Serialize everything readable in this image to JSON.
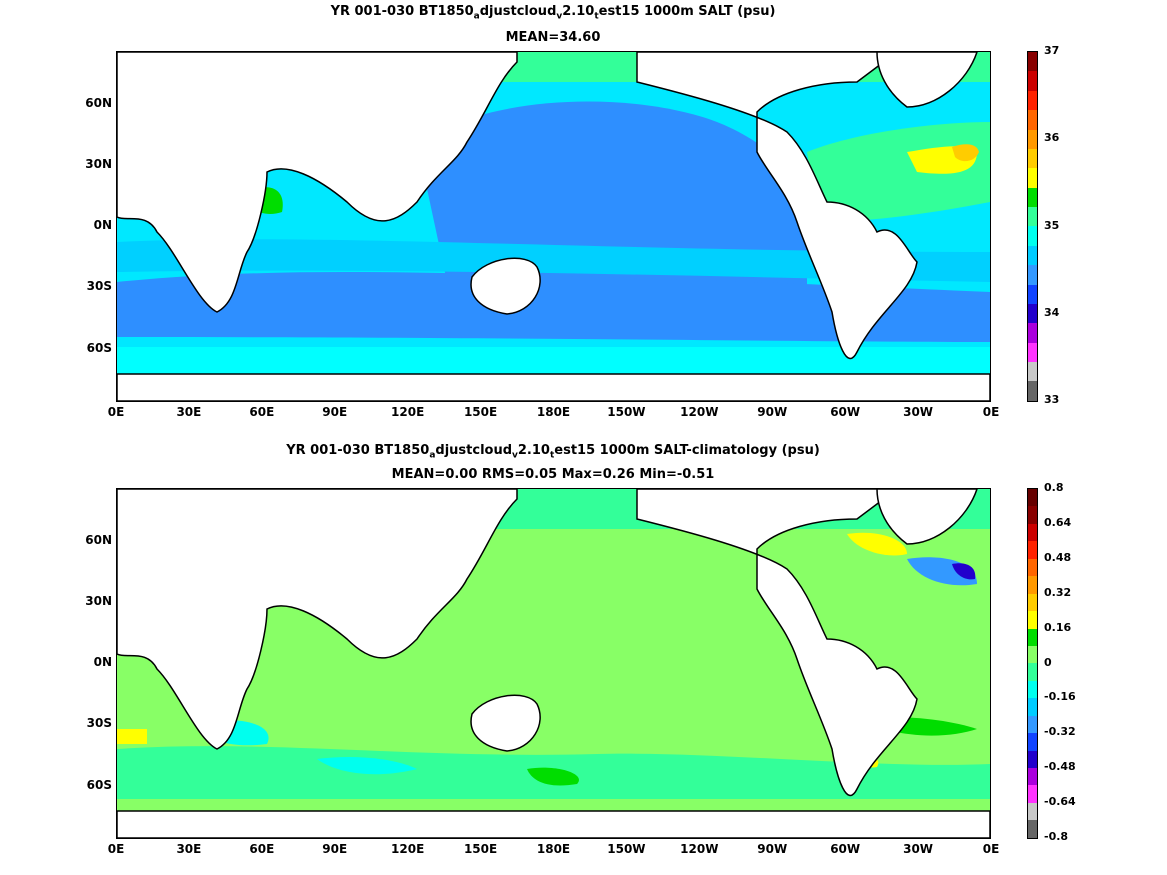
{
  "panels": [
    {
      "title_parts": [
        "YR 001-030 BT1850",
        "a",
        "djustcloud",
        "v",
        "2.10",
        "t",
        "est15 1000m SALT (psu)"
      ],
      "subtitle": "MEAN=34.60",
      "colorbar": {
        "colors": [
          "#666666",
          "#c8c8c8",
          "#ff33ff",
          "#aa00dd",
          "#2200cc",
          "#1144ff",
          "#3399ff",
          "#00ccff",
          "#00ffee",
          "#33ff99",
          "#00dd00",
          "#ffff00",
          "#ffcc00",
          "#ff9900",
          "#ff6600",
          "#ff2200",
          "#cc0000",
          "#880000"
        ],
        "labels": [
          "33",
          "34",
          "35",
          "36",
          "37"
        ]
      }
    },
    {
      "title_parts": [
        "YR 001-030 BT1850",
        "a",
        "djustcloud",
        "v",
        "2.10",
        "t",
        "est15 1000m SALT-climatology (psu)"
      ],
      "subtitle": "MEAN=0.00   RMS=0.05   Max=0.26   Min=-0.51",
      "colorbar": {
        "colors": [
          "#666666",
          "#c8c8c8",
          "#ff33ff",
          "#aa00dd",
          "#2200cc",
          "#1144ff",
          "#3399ff",
          "#00ccff",
          "#00ffee",
          "#33ff99",
          "#88ff66",
          "#00dd00",
          "#ffff00",
          "#ffcc00",
          "#ff9900",
          "#ff6600",
          "#ff2200",
          "#cc0000",
          "#880000",
          "#660000"
        ],
        "labels": [
          "0.8",
          "0.64",
          "0.48",
          "0.32",
          "0.16",
          "0",
          "-0.16",
          "-0.32",
          "-0.48",
          "-0.64",
          "-0.8"
        ]
      }
    }
  ],
  "map": {
    "lat_labels": [
      "60N",
      "30N",
      "0N",
      "30S",
      "60S"
    ],
    "lon_labels": [
      "0E",
      "30E",
      "60E",
      "90E",
      "120E",
      "150E",
      "180E",
      "150W",
      "120W",
      "90W",
      "60W",
      "30W",
      "0E"
    ]
  },
  "colors": {
    "land": "#ffffff",
    "coast": "#000000",
    "panel1_base": "#00e0ff",
    "panel1_mid": "#2e8fff",
    "panel1_atl": "#33ff99",
    "panel2_base": "#88ff66",
    "panel2_alt": "#33ff99"
  }
}
